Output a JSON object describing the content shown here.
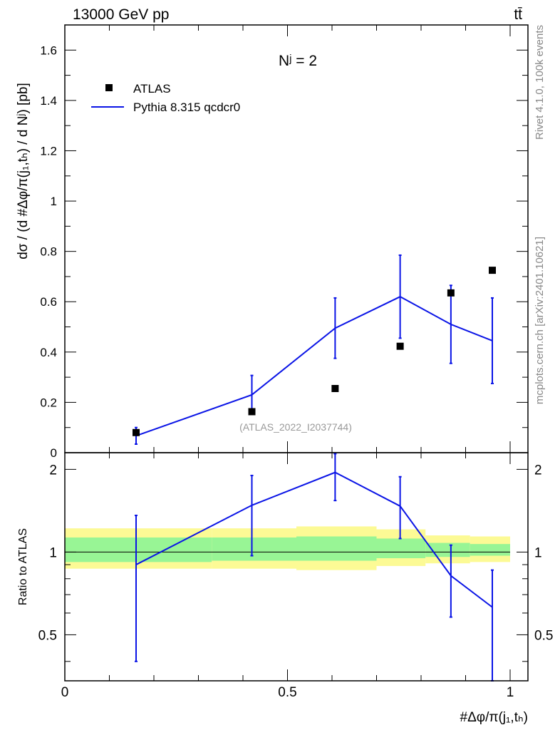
{
  "header": {
    "energy_label": "13000 GeV pp",
    "process_label": "tt̄"
  },
  "side_labels": {
    "rivet": "Rivet 4.1.0,  100k events",
    "mcplots": "mcplots.cern.ch [arXiv:2401.10621]"
  },
  "chart_data": [
    {
      "panel": "main",
      "type": "scatter+line",
      "annotation": "Nʲ = 2",
      "watermark": "(ATLAS_2022_I2037744)",
      "ylabel": "dσ / (d #Δφ/π(j₁,tₕ) / d Nʲ) [pb]",
      "xlim": [
        0,
        1.04
      ],
      "ylim": [
        0,
        1.7
      ],
      "yticks": [
        0.2,
        0.4,
        0.6,
        0.8,
        1,
        1.2,
        1.4,
        1.6
      ],
      "ytick_labels": [
        "0.2",
        "0.4",
        "0.6",
        "0.8",
        "1",
        "1.2",
        "1.4",
        "1.6"
      ],
      "y_zero_label": "0",
      "legend": [
        "ATLAS",
        "Pythia 8.315 qcdcr0"
      ],
      "series": [
        {
          "name": "ATLAS",
          "style": "black-square-markers",
          "x": [
            0.16,
            0.42,
            0.607,
            0.753,
            0.867,
            0.96
          ],
          "y": [
            0.08,
            0.163,
            0.255,
            0.423,
            0.635,
            0.725
          ]
        },
        {
          "name": "Pythia 8.315 qcdcr0",
          "style": "blue-line-with-errorbars",
          "x": [
            0.16,
            0.42,
            0.607,
            0.753,
            0.867,
            0.96
          ],
          "y": [
            0.067,
            0.23,
            0.495,
            0.62,
            0.51,
            0.445
          ],
          "yerr": [
            0.033,
            0.077,
            0.12,
            0.165,
            0.155,
            0.17
          ]
        }
      ]
    },
    {
      "panel": "ratio",
      "type": "line+bands",
      "ylabel": "Ratio to ATLAS",
      "xlabel": "#Δφ/π(j₁,tₕ)",
      "xlim": [
        0,
        1.04
      ],
      "ylim": [
        0.34,
        2.3
      ],
      "xticks": [
        0,
        0.5,
        1
      ],
      "xtick_labels": [
        "0",
        "0.5",
        "1"
      ],
      "yticks": [
        0.5,
        1,
        2
      ],
      "ytick_labels": [
        "0.5",
        "1",
        "2"
      ],
      "bands": [
        {
          "xlo": 0.0,
          "xhi": 0.33,
          "yellow": [
            0.87,
            1.22
          ],
          "green": [
            0.92,
            1.13
          ]
        },
        {
          "xlo": 0.33,
          "xhi": 0.52,
          "yellow": [
            0.87,
            1.22
          ],
          "green": [
            0.93,
            1.13
          ]
        },
        {
          "xlo": 0.52,
          "xhi": 0.7,
          "yellow": [
            0.86,
            1.24
          ],
          "green": [
            0.93,
            1.14
          ]
        },
        {
          "xlo": 0.7,
          "xhi": 0.81,
          "yellow": [
            0.89,
            1.21
          ],
          "green": [
            0.95,
            1.12
          ]
        },
        {
          "xlo": 0.81,
          "xhi": 0.91,
          "yellow": [
            0.91,
            1.15
          ],
          "green": [
            0.96,
            1.08
          ]
        },
        {
          "xlo": 0.91,
          "xhi": 1.0,
          "yellow": [
            0.92,
            1.14
          ],
          "green": [
            0.97,
            1.07
          ]
        }
      ],
      "series": [
        {
          "name": "Pythia 8.315 qcdcr0 / ATLAS",
          "style": "blue-line-with-errorbars",
          "x": [
            0.16,
            0.42,
            0.607,
            0.753,
            0.867,
            0.96
          ],
          "y": [
            0.9,
            1.48,
            1.95,
            1.47,
            0.82,
            0.63
          ],
          "ylo": [
            0.4,
            0.97,
            1.54,
            1.12,
            0.58,
            0.34
          ],
          "yhi": [
            1.36,
            1.9,
            2.28,
            1.88,
            1.06,
            0.86
          ]
        }
      ]
    }
  ],
  "colors": {
    "data": "#000000",
    "mc": "#0a14e6",
    "band_yellow": "#fcfa95",
    "band_green": "#98f595",
    "watermark": "#999999",
    "side_text": "#888888"
  }
}
